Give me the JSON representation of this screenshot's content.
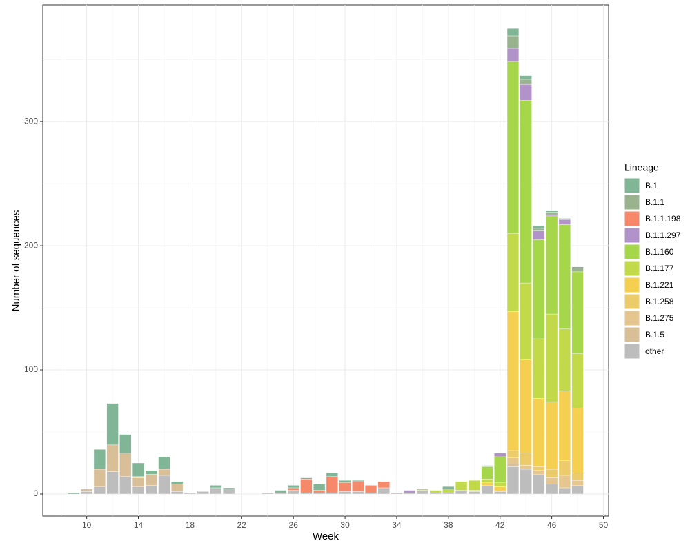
{
  "chart_data": {
    "type": "stacked-bar",
    "x_label": "Week",
    "y_label": "Number of sequences",
    "legend_title": "Lineage",
    "legend_position": "right",
    "grid": true,
    "x": [
      9,
      10,
      11,
      12,
      13,
      14,
      15,
      16,
      17,
      18,
      19,
      20,
      21,
      22,
      23,
      24,
      25,
      26,
      27,
      28,
      29,
      30,
      31,
      32,
      33,
      34,
      35,
      36,
      37,
      38,
      39,
      40,
      41,
      42,
      43,
      44,
      45,
      46,
      47,
      48
    ],
    "xlim": [
      6.6,
      50.4
    ],
    "xticks": [
      10,
      14,
      18,
      22,
      26,
      30,
      34,
      38,
      42,
      46,
      50
    ],
    "ylim": [
      -17.8,
      394
    ],
    "yticks": [
      0,
      100,
      200,
      300
    ],
    "series": [
      {
        "name": "B.1",
        "color": "#80b696",
        "values": [
          1,
          0,
          16,
          33,
          15,
          11,
          3,
          10,
          2,
          0,
          0,
          2,
          1,
          0,
          0,
          0,
          2,
          2,
          1,
          5,
          3,
          2,
          1,
          0,
          0,
          0,
          0,
          0,
          0,
          2,
          0,
          0,
          1,
          0,
          6,
          3,
          2,
          1,
          0,
          1
        ]
      },
      {
        "name": "B.1.1",
        "color": "#98b38e",
        "values": [
          0,
          0,
          0,
          1,
          0,
          0,
          0,
          0,
          0,
          0,
          0,
          0,
          0,
          0,
          0,
          0,
          0,
          0,
          0,
          0,
          0,
          0,
          0,
          0,
          0,
          0,
          0,
          0,
          0,
          0,
          0,
          0,
          0,
          0,
          10,
          4,
          2,
          2,
          1,
          3
        ]
      },
      {
        "name": "B.1.1.198",
        "color": "#f5896a",
        "values": [
          0,
          0,
          0,
          0,
          0,
          0,
          0,
          0,
          0,
          0,
          0,
          0,
          0,
          0,
          0,
          0,
          0,
          2,
          11,
          2,
          13,
          7,
          8,
          6,
          5,
          0,
          0,
          0,
          0,
          0,
          0,
          0,
          0,
          0,
          0,
          0,
          0,
          0,
          0,
          0
        ]
      },
      {
        "name": "B.1.1.297",
        "color": "#b293c9",
        "values": [
          0,
          0,
          0,
          0,
          0,
          0,
          0,
          0,
          0,
          0,
          0,
          0,
          0,
          0,
          0,
          0,
          0,
          0,
          0,
          0,
          0,
          0,
          0,
          0,
          0,
          0,
          2,
          0,
          0,
          0,
          0,
          0,
          0,
          3,
          11,
          13,
          7,
          1,
          4,
          0
        ]
      },
      {
        "name": "B.1.160",
        "color": "#a6d64a",
        "values": [
          0,
          0,
          0,
          0,
          0,
          0,
          0,
          0,
          0,
          0,
          0,
          0,
          0,
          0,
          0,
          0,
          0,
          0,
          0,
          0,
          0,
          0,
          0,
          0,
          0,
          0,
          0,
          0,
          0,
          0,
          0,
          0,
          10,
          21,
          138,
          147,
          80,
          79,
          84,
          66
        ]
      },
      {
        "name": "B.1.177",
        "color": "#c2d94a",
        "values": [
          0,
          0,
          0,
          0,
          0,
          0,
          0,
          0,
          0,
          0,
          0,
          0,
          0,
          0,
          0,
          0,
          0,
          0,
          0,
          0,
          0,
          0,
          0,
          0,
          0,
          0,
          0,
          1,
          2,
          3,
          7,
          8,
          3,
          3,
          63,
          62,
          48,
          71,
          50,
          44
        ]
      },
      {
        "name": "B.1.221",
        "color": "#f5d050",
        "values": [
          0,
          0,
          0,
          0,
          0,
          1,
          0,
          0,
          0,
          0,
          0,
          0,
          0,
          0,
          0,
          0,
          0,
          0,
          0,
          0,
          0,
          0,
          0,
          0,
          0,
          0,
          0,
          0,
          0,
          0,
          0,
          1,
          2,
          4,
          112,
          75,
          55,
          54,
          56,
          52
        ]
      },
      {
        "name": "B.1.258",
        "color": "#eccc6a",
        "values": [
          0,
          0,
          0,
          0,
          0,
          0,
          0,
          0,
          0,
          0,
          0,
          0,
          0,
          0,
          0,
          0,
          0,
          0,
          0,
          0,
          0,
          0,
          0,
          0,
          0,
          0,
          0,
          0,
          0,
          0,
          0,
          0,
          0,
          0,
          6,
          10,
          3,
          7,
          12,
          6
        ]
      },
      {
        "name": "B.1.275",
        "color": "#e5c68e",
        "values": [
          0,
          0,
          0,
          0,
          0,
          0,
          0,
          0,
          0,
          0,
          0,
          0,
          0,
          0,
          0,
          0,
          0,
          0,
          0,
          0,
          0,
          0,
          0,
          0,
          0,
          0,
          0,
          0,
          0,
          0,
          0,
          0,
          0,
          0,
          5,
          3,
          3,
          5,
          10,
          4
        ]
      },
      {
        "name": "B.1.5",
        "color": "#d9bf98",
        "values": [
          0,
          2,
          14,
          21,
          19,
          7,
          9,
          5,
          6,
          0,
          0,
          0,
          0,
          0,
          0,
          0,
          0,
          0,
          0,
          0,
          0,
          0,
          0,
          0,
          0,
          0,
          0,
          0,
          0,
          0,
          0,
          0,
          0,
          0,
          2,
          0,
          0,
          0,
          0,
          0
        ]
      },
      {
        "name": "other",
        "color": "#bdbdbd",
        "values": [
          0,
          2,
          6,
          18,
          14,
          6,
          7,
          15,
          2,
          1,
          2,
          5,
          4,
          0,
          0,
          1,
          1,
          3,
          1,
          1,
          1,
          2,
          2,
          1,
          5,
          1,
          1,
          3,
          1,
          1,
          3,
          2,
          7,
          2,
          22,
          20,
          16,
          8,
          5,
          7
        ]
      }
    ]
  }
}
